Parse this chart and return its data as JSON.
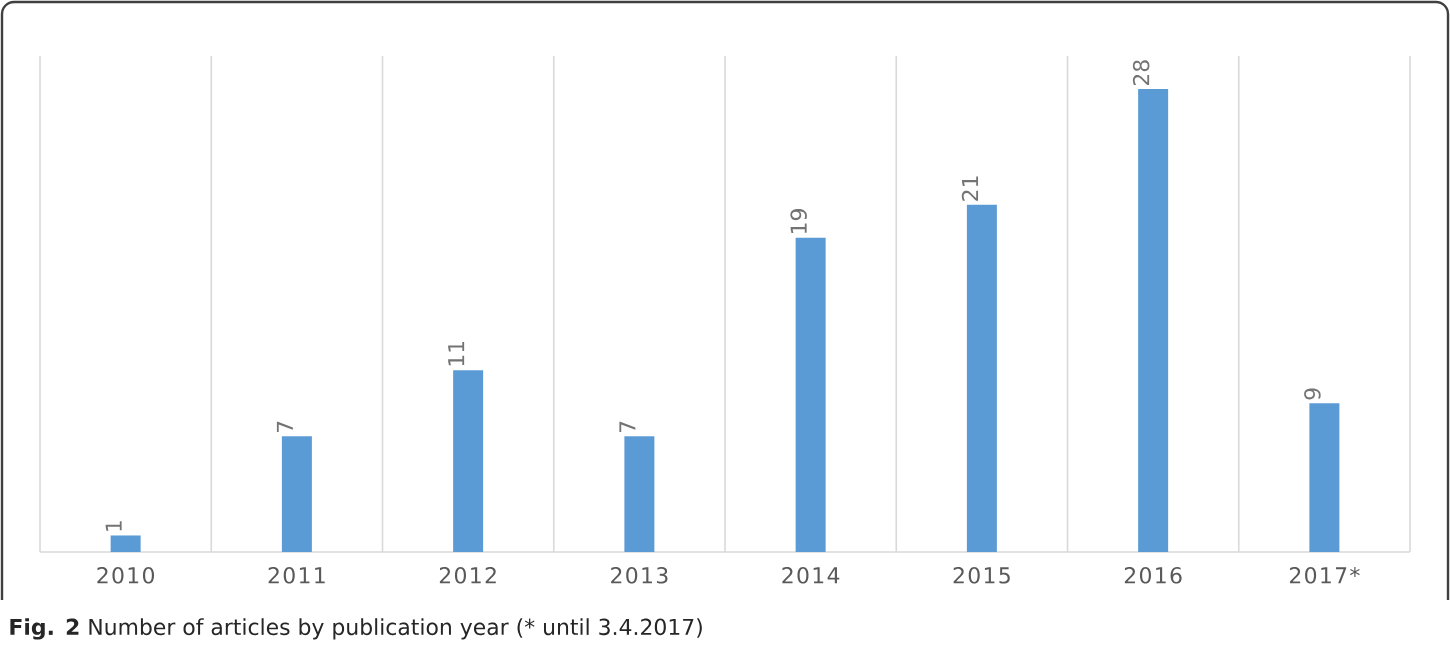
{
  "chart_data": {
    "type": "bar",
    "categories": [
      "2010",
      "2011",
      "2012",
      "2013",
      "2014",
      "2015",
      "2016",
      "2017*"
    ],
    "values": [
      1,
      7,
      11,
      7,
      19,
      21,
      28,
      9
    ],
    "color": "#5b9bd5",
    "ylim": [
      0,
      30
    ],
    "data_labels": true,
    "grid": "x",
    "annotations": [
      "**Fig. 2** Number of articles by publication year (* until 3.4.2017)"
    ]
  }
}
